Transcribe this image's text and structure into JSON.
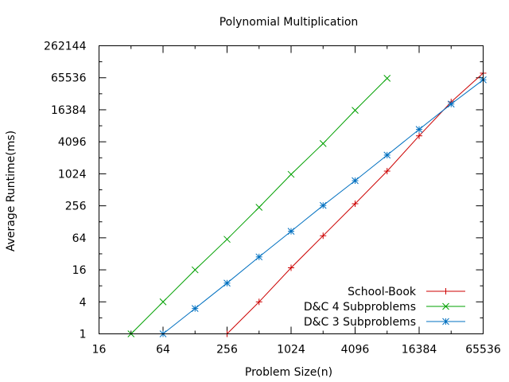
{
  "chart_data": {
    "type": "line",
    "title": "Polynomial Multiplication",
    "xlabel": "Problem Size(n)",
    "ylabel": "Average Runtime(ms)",
    "x_scale": "log2",
    "y_scale": "log2",
    "xlim": [
      16,
      65536
    ],
    "ylim": [
      1,
      262144
    ],
    "x_ticks": [
      16,
      64,
      256,
      1024,
      4096,
      16384,
      65536
    ],
    "x_tick_labels": [
      "16",
      "64",
      "256",
      "1024",
      "4096",
      "16384",
      "65536"
    ],
    "y_ticks": [
      1,
      4,
      16,
      64,
      256,
      1024,
      4096,
      16384,
      65536,
      262144
    ],
    "y_tick_labels": [
      "1",
      "4",
      "16",
      "64",
      "256",
      "1024",
      "4096",
      "16384",
      "65536",
      "262144"
    ],
    "grid": false,
    "legend_position": "bottom-right",
    "series": [
      {
        "name": "School-Book",
        "color": "#cc0000",
        "marker": "plus",
        "x": [
          256,
          512,
          1024,
          2048,
          4096,
          8192,
          16384,
          32768,
          65536
        ],
        "y": [
          1,
          4,
          17.5,
          70,
          280,
          1150,
          5300,
          23000,
          80000
        ]
      },
      {
        "name": "D&C 4 Subproblems",
        "color": "#00a000",
        "marker": "cross",
        "x": [
          32,
          64,
          128,
          256,
          512,
          1024,
          2048,
          4096,
          8192
        ],
        "y": [
          1,
          4,
          16,
          60,
          240,
          1000,
          3800,
          16000,
          64000
        ]
      },
      {
        "name": "D&C 3 Subproblems",
        "color": "#0070c0",
        "marker": "star",
        "x": [
          64,
          128,
          256,
          512,
          1024,
          2048,
          4096,
          8192,
          16384,
          32768,
          65536
        ],
        "y": [
          1,
          3,
          9,
          28,
          85,
          260,
          760,
          2300,
          7000,
          21000,
          60000
        ]
      }
    ]
  }
}
